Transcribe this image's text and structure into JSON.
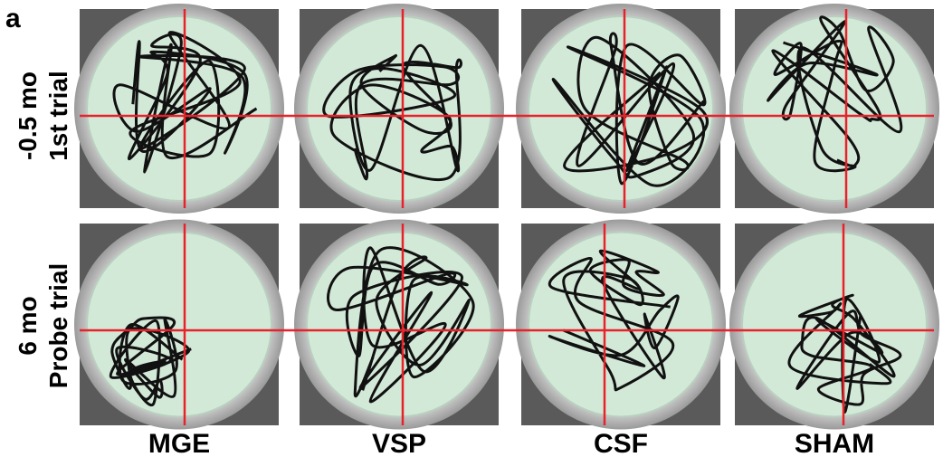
{
  "panel_label": "a",
  "rows": [
    {
      "lines": [
        "-0.5 mo",
        "1st  trial"
      ]
    },
    {
      "lines": [
        "6 mo",
        "Probe trial"
      ]
    }
  ],
  "columns": [
    "MGE",
    "VSP",
    "CSF",
    "SHAM"
  ]
}
